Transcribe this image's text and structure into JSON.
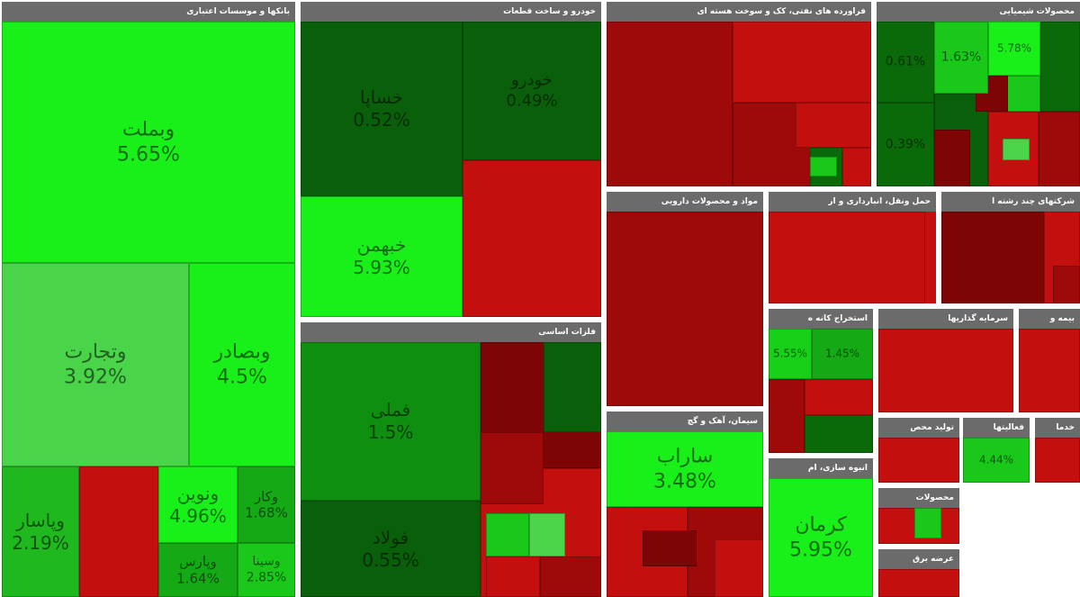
{
  "chart_data": {
    "type": "treemap",
    "colors": {
      "strong_up": "#19f019",
      "mid_up": "#4ad44a",
      "up": "#0f8f0f",
      "dark_up": "#0a5f0a",
      "down": "#c40f0f",
      "dark_down": "#7d0505",
      "header": "#6b6b6b"
    },
    "sectors": [
      {
        "name": "بانکها و موسسات اعتباری",
        "stocks": [
          {
            "name": "وبملت",
            "change": "5.65%",
            "color": "#19f019"
          },
          {
            "name": "وتجارت",
            "change": "3.92%",
            "color": "#4ad44a"
          },
          {
            "name": "وبصادر",
            "change": "4.5%",
            "color": "#19f019"
          },
          {
            "name": "وپاسار",
            "change": "2.19%",
            "color": "#1fb81f"
          },
          {
            "name": "",
            "change": "",
            "color": "#c40f0f"
          },
          {
            "name": "ونوین",
            "change": "4.96%",
            "color": "#19f019"
          },
          {
            "name": "وکار",
            "change": "1.68%",
            "color": "#16a916"
          },
          {
            "name": "وپارس",
            "change": "1.64%",
            "color": "#16a916"
          },
          {
            "name": "وسینا",
            "change": "2.85%",
            "color": "#19c819"
          }
        ]
      },
      {
        "name": "خودرو و ساخت قطعات",
        "stocks": [
          {
            "name": "خساپا",
            "change": "0.52%",
            "color": "#0a5f0a"
          },
          {
            "name": "خودرو",
            "change": "0.49%",
            "color": "#0a5f0a"
          },
          {
            "name": "خبهمن",
            "change": "5.93%",
            "color": "#19f019"
          },
          {
            "name": "",
            "change": "",
            "color": "#c40f0f"
          }
        ]
      },
      {
        "name": "فلزات اساسی",
        "stocks": [
          {
            "name": "فملی",
            "change": "1.5%",
            "color": "#0f8f0f"
          },
          {
            "name": "فولاد",
            "change": "0.55%",
            "color": "#0a5f0a"
          }
        ]
      },
      {
        "name": "فراورده های نفتی، کک و سوخت هسته ای",
        "stocks": [
          {
            "name": "",
            "change": "",
            "color": "#9e0a0a"
          },
          {
            "name": "",
            "change": "",
            "color": "#c40f0f"
          }
        ]
      },
      {
        "name": "محصولات شیمیایی",
        "stocks": [
          {
            "name": "",
            "change": "0.61%",
            "color": "#0a6a0a"
          },
          {
            "name": "",
            "change": "1.63%",
            "color": "#19c819"
          },
          {
            "name": "",
            "change": "5.78%",
            "color": "#19f019"
          },
          {
            "name": "",
            "change": "0.39%",
            "color": "#0a6a0a"
          }
        ]
      },
      {
        "name": "مواد و محصولات دارویی",
        "stocks": [
          {
            "name": "",
            "change": "",
            "color": "#9e0a0a"
          }
        ]
      },
      {
        "name": "حمل ونقل، انبارداری و ار",
        "stocks": [
          {
            "name": "",
            "change": "",
            "color": "#c40f0f"
          }
        ]
      },
      {
        "name": "شرکتهای چند رشته ا",
        "stocks": [
          {
            "name": "",
            "change": "",
            "color": "#7d0505"
          }
        ]
      },
      {
        "name": "سیمان، آهک و گچ",
        "stocks": [
          {
            "name": "ساراب",
            "change": "3.48%",
            "color": "#19f019"
          }
        ]
      },
      {
        "name": "استخراج کانه ه",
        "stocks": [
          {
            "name": "",
            "change": "5.55%",
            "color": "#19d019"
          },
          {
            "name": "",
            "change": "1.45%",
            "color": "#16a916"
          }
        ]
      },
      {
        "name": "سرمایه گذاریها",
        "stocks": [
          {
            "name": "",
            "change": "",
            "color": "#c40f0f"
          }
        ]
      },
      {
        "name": "بیمه و",
        "stocks": [
          {
            "name": "",
            "change": "",
            "color": "#c40f0f"
          }
        ]
      },
      {
        "name": "انبوه سازی، ام",
        "stocks": [
          {
            "name": "کرمان",
            "change": "5.95%",
            "color": "#19f019"
          }
        ]
      },
      {
        "name": "تولید محص",
        "stocks": [
          {
            "name": "",
            "change": "",
            "color": "#c40f0f"
          }
        ]
      },
      {
        "name": "فعالیتها",
        "stocks": [
          {
            "name": "",
            "change": "4.44%",
            "color": "#19c819"
          }
        ]
      },
      {
        "name": "خدما",
        "stocks": []
      },
      {
        "name": "محصولات",
        "stocks": []
      },
      {
        "name": "عرضه برق",
        "stocks": []
      }
    ]
  }
}
